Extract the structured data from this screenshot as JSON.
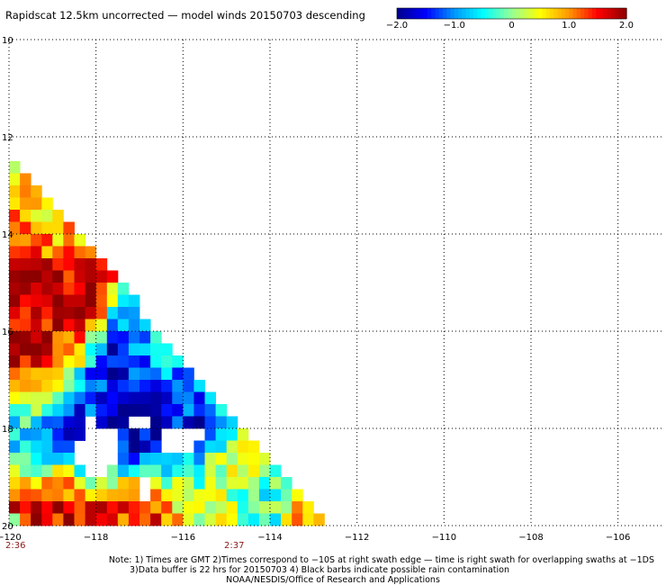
{
  "chart_data": {
    "type": "heatmap",
    "title": "Rapidscat 12.5km uncorrected — model winds 20150703 descending",
    "colorbar": {
      "min": -2.0,
      "max": 2.0,
      "tick_values": [
        -2.0,
        -1.0,
        0,
        1.0,
        2.0
      ],
      "tick_labels": [
        "−2.0",
        "−1.0",
        "0",
        "1.0",
        "2.0"
      ],
      "colors": [
        "#00008c",
        "#0000ff",
        "#0096ff",
        "#00ffff",
        "#96ff96",
        "#ffff00",
        "#ff9600",
        "#ff0000",
        "#8c0000"
      ]
    },
    "x_axis": {
      "range": [
        -120,
        -105
      ],
      "ticks": [
        -120,
        -118,
        -116,
        -114,
        -112,
        -110,
        -108,
        -106
      ],
      "tick_labels": [
        "−120",
        "−118",
        "−116",
        "−114",
        "−112",
        "−110",
        "−108",
        "−106"
      ]
    },
    "y_axis": {
      "range": [
        20,
        10
      ],
      "ticks": [
        10,
        12,
        14,
        16,
        18,
        20
      ],
      "tick_labels": [
        "10",
        "12",
        "14",
        "16",
        "18",
        "20"
      ]
    },
    "grid": true,
    "grid_style": "dotted",
    "swath_edge": [
      [
        -120.0,
        12.5
      ],
      [
        -112.8,
        20.0
      ]
    ],
    "cell_size_deg": 0.25,
    "value_field": {
      "description_none": "",
      "peaks": [
        {
          "lon": -119.5,
          "lat": 15.6,
          "value": 1.9,
          "radius": 1.0
        },
        {
          "lon": -119.3,
          "lat": 16.2,
          "value": 1.8,
          "radius": 0.8
        },
        {
          "lon": -119.0,
          "lat": 16.5,
          "value": 1.5,
          "radius": 0.7
        },
        {
          "lon": -117.9,
          "lat": 18.3,
          "value": -2.0,
          "radius": 0.9
        },
        {
          "lon": -117.6,
          "lat": 17.2,
          "value": -1.8,
          "radius": 0.9
        },
        {
          "lon": -117.0,
          "lat": 17.6,
          "value": -1.9,
          "radius": 0.9
        },
        {
          "lon": -116.1,
          "lat": 18.2,
          "value": -1.9,
          "radius": 0.7
        },
        {
          "lon": -116.5,
          "lat": 16.9,
          "value": -0.9,
          "radius": 0.8
        },
        {
          "lon": -118.6,
          "lat": 17.5,
          "value": -0.7,
          "radius": 0.8
        },
        {
          "lon": -118.3,
          "lat": 19.6,
          "value": 1.8,
          "radius": 0.8
        },
        {
          "lon": -117.0,
          "lat": 19.6,
          "value": 1.5,
          "radius": 0.8
        },
        {
          "lon": -119.0,
          "lat": 13.4,
          "value": 0.9,
          "radius": 1.0
        },
        {
          "lon": -119.6,
          "lat": 12.8,
          "value": 0.6,
          "radius": 0.8
        },
        {
          "lon": -115.2,
          "lat": 19.2,
          "value": 0.2,
          "radius": 1.0
        },
        {
          "lon": -114.0,
          "lat": 19.8,
          "value": -0.6,
          "radius": 0.7
        },
        {
          "lon": -113.3,
          "lat": 19.8,
          "value": 1.6,
          "radius": 0.4
        },
        {
          "lon": -115.7,
          "lat": 15.9,
          "value": 0.2,
          "radius": 1.0
        }
      ],
      "missing_cells": [
        [
          -118.0,
          18.1
        ],
        [
          -118.1,
          18.0
        ],
        [
          -117.9,
          18.2
        ],
        [
          -117.75,
          18.3
        ],
        [
          -118.3,
          18.35
        ],
        [
          -117.9,
          18.6
        ],
        [
          -118.3,
          18.6
        ],
        [
          -118.1,
          18.6
        ],
        [
          -117.8,
          18.45
        ],
        [
          -118.0,
          18.9
        ],
        [
          -116.0,
          18.1
        ],
        [
          -116.2,
          18.1
        ],
        [
          -116.0,
          18.3
        ],
        [
          -115.8,
          18.1
        ],
        [
          -116.2,
          18.3
        ],
        [
          -116.4,
          18.4
        ],
        [
          -117.0,
          17.9
        ],
        [
          -116.85,
          19.3
        ]
      ]
    },
    "annotations": {
      "time_left": "2:36",
      "time_mid": "2:37"
    }
  },
  "footer": {
    "line1": "Note: 1) Times are GMT 2)Times correspond to −10S at right swath edge — time is right swath for overlapping swaths at −1DS",
    "line2": "3)Data buffer is 22 hrs for 20150703 4) Black barbs indicate possible rain contamination",
    "line3": "NOAA/NESDIS/Office of Research and Applications"
  }
}
